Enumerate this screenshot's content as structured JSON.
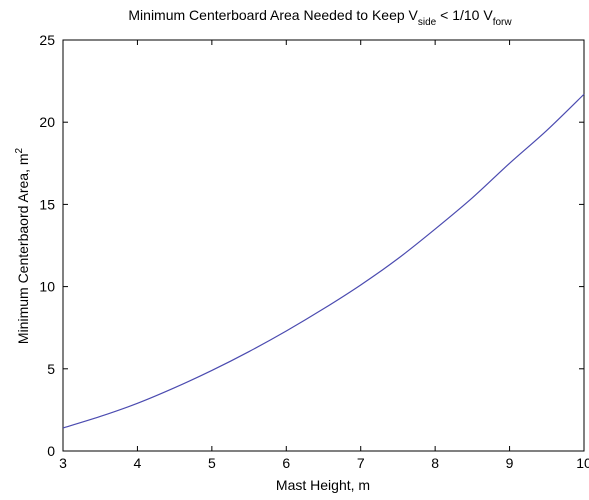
{
  "chart_data": {
    "type": "line",
    "title": "Minimum Centerboard Area Needed to Keep V",
    "title_sub1": "side",
    "title_mid": " < 1/10 V",
    "title_sub2": "forw",
    "xlabel": "Mast Height, m",
    "ylabel": "Minimum Centerbaord Area, m",
    "ylabel_sup": "2",
    "xlim": [
      3,
      10
    ],
    "ylim": [
      0,
      25
    ],
    "x_ticks": [
      "3",
      "4",
      "5",
      "6",
      "7",
      "8",
      "9",
      "10"
    ],
    "y_ticks": [
      "0",
      "5",
      "10",
      "15",
      "20",
      "25"
    ],
    "grid": false,
    "line_color": "#4b4bb0",
    "series": [
      {
        "x": [
          3,
          3.5,
          4,
          4.5,
          5,
          5.5,
          6,
          6.5,
          7,
          7.5,
          8,
          8.5,
          9,
          9.5,
          10
        ],
        "y": [
          1.4,
          2.1,
          2.9,
          3.85,
          4.9,
          6.05,
          7.3,
          8.65,
          10.1,
          11.7,
          13.5,
          15.4,
          17.5,
          19.5,
          21.7
        ]
      }
    ]
  }
}
